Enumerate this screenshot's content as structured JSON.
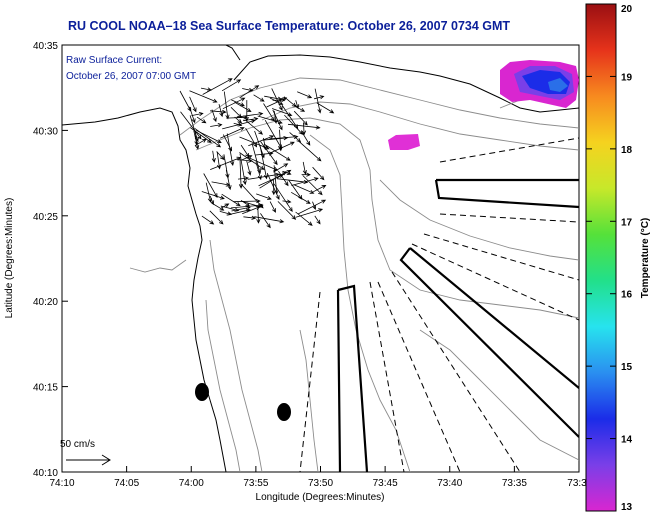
{
  "header": {
    "title": "RU COOL  NOAA–18  Sea Surface Temperature:  October 26, 2007 0734 GMT"
  },
  "annotations": {
    "line1": "Raw Surface Current:",
    "line2": "October 26, 2007 07:00 GMT",
    "scale_label": "50 cm/s"
  },
  "axes": {
    "xlabel": "Longitude (Degrees:Minutes)",
    "ylabel": "Latitude (Degrees:Minutes)",
    "x_ticks": [
      "74:10",
      "74:05",
      "74:00",
      "73:55",
      "73:50",
      "73:45",
      "73:40",
      "73:35",
      "73:3"
    ],
    "y_ticks": [
      "40:10",
      "40:15",
      "40:20",
      "40:25",
      "40:30",
      "40:35"
    ]
  },
  "colorbar": {
    "label": "Temperature (°C)",
    "ticks": [
      "13",
      "14",
      "15",
      "16",
      "17",
      "18",
      "19",
      "20"
    ],
    "min": 13,
    "max": 20,
    "colors": [
      "#d926d0",
      "#7a3fe8",
      "#1b2ce8",
      "#2a8ff0",
      "#27e3ee",
      "#22e08a",
      "#55e13a",
      "#c7e82a",
      "#f5d21f",
      "#f78a1f",
      "#e6331b",
      "#9a0f12"
    ]
  },
  "sst_patches": [
    {
      "name": "sst-patch-northeast",
      "temperature_c": 14.0
    },
    {
      "name": "sst-patch-offshore",
      "temperature_c": 13.0
    }
  ],
  "style": {
    "title_color": "#0b1f9a",
    "contour_color": "#8c8c8c",
    "coast_color": "#000000"
  }
}
